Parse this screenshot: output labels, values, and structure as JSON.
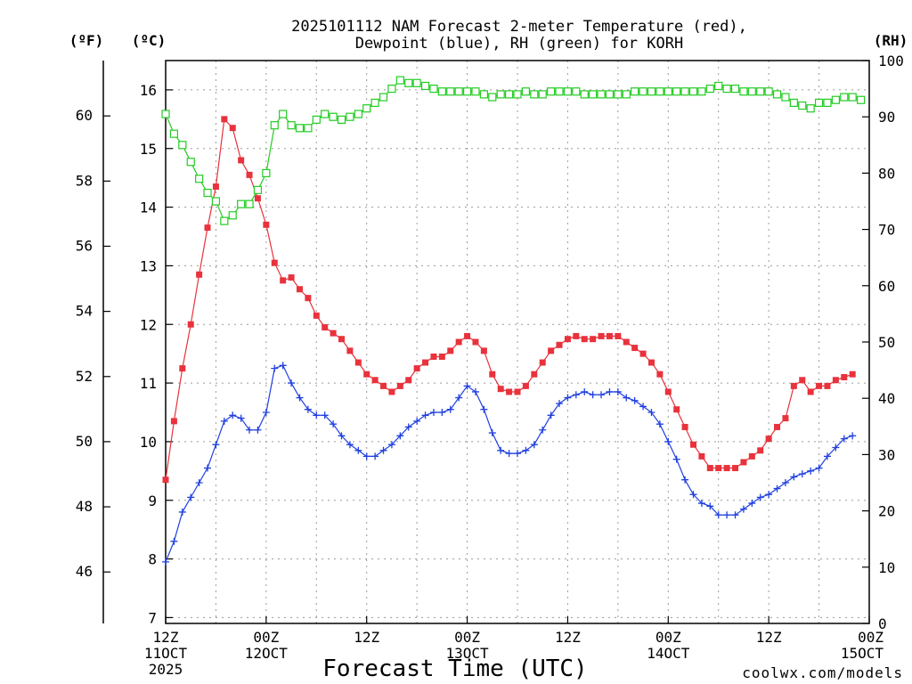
{
  "colors": {
    "temperature": "#e8323c",
    "dewpoint": "#2040e0",
    "rh": "#22cc22",
    "credit": "#e8323c"
  },
  "chart_data": {
    "type": "line",
    "title_lines": [
      "2025101112 NAM Forecast 2-meter Temperature (red),",
      "Dewpoint (blue), RH (green) for KORH"
    ],
    "xlabel": "Forecast Time (UTC)",
    "credit": "coolwx.com/models",
    "unit_labels": {
      "fahrenheit": "(ºF)",
      "celsius": "(ºC)",
      "rh": "(RH)"
    },
    "axes": {
      "x_hours_range": [
        0,
        84
      ],
      "celsius_range": [
        6.9,
        16.5
      ],
      "fahrenheit_ticks": [
        "46",
        "48",
        "50",
        "52",
        "54",
        "56",
        "58",
        "60"
      ],
      "celsius_ticks": [
        "7",
        "8",
        "9",
        "10",
        "11",
        "12",
        "13",
        "14",
        "15",
        "16"
      ],
      "rh_range": [
        0,
        100
      ],
      "rh_ticks": [
        "0",
        "10",
        "20",
        "30",
        "40",
        "50",
        "60",
        "70",
        "80",
        "90",
        "100"
      ],
      "grid": true
    },
    "x_ticks": [
      {
        "hour": 0,
        "lines": [
          "12Z",
          "11OCT",
          "2025"
        ]
      },
      {
        "hour": 12,
        "lines": [
          "00Z",
          "12OCT"
        ]
      },
      {
        "hour": 24,
        "lines": [
          "12Z"
        ]
      },
      {
        "hour": 36,
        "lines": [
          "00Z",
          "13OCT"
        ]
      },
      {
        "hour": 48,
        "lines": [
          "12Z"
        ]
      },
      {
        "hour": 60,
        "lines": [
          "00Z",
          "14OCT"
        ]
      },
      {
        "hour": 72,
        "lines": [
          "12Z"
        ]
      },
      {
        "hour": 84,
        "lines": [
          "00Z",
          "15OCT"
        ]
      }
    ],
    "series": [
      {
        "name": "Temperature (ºC)",
        "axis": "celsius",
        "marker": "filled-square",
        "points": [
          [
            0,
            9.35
          ],
          [
            1,
            10.35
          ],
          [
            2,
            11.25
          ],
          [
            3,
            12.0
          ],
          [
            4,
            12.85
          ],
          [
            5,
            13.65
          ],
          [
            6,
            14.35
          ],
          [
            7,
            15.5
          ],
          [
            8,
            15.35
          ],
          [
            9,
            14.8
          ],
          [
            10,
            14.55
          ],
          [
            11,
            14.15
          ],
          [
            12,
            13.7
          ],
          [
            13,
            13.05
          ],
          [
            14,
            12.75
          ],
          [
            15,
            12.8
          ],
          [
            16,
            12.6
          ],
          [
            17,
            12.45
          ],
          [
            18,
            12.15
          ],
          [
            19,
            11.95
          ],
          [
            20,
            11.85
          ],
          [
            21,
            11.75
          ],
          [
            22,
            11.55
          ],
          [
            23,
            11.35
          ],
          [
            24,
            11.15
          ],
          [
            25,
            11.05
          ],
          [
            26,
            10.95
          ],
          [
            27,
            10.85
          ],
          [
            28,
            10.95
          ],
          [
            29,
            11.05
          ],
          [
            30,
            11.25
          ],
          [
            31,
            11.35
          ],
          [
            32,
            11.45
          ],
          [
            33,
            11.45
          ],
          [
            34,
            11.55
          ],
          [
            35,
            11.7
          ],
          [
            36,
            11.8
          ],
          [
            37,
            11.7
          ],
          [
            38,
            11.55
          ],
          [
            39,
            11.15
          ],
          [
            40,
            10.9
          ],
          [
            41,
            10.85
          ],
          [
            42,
            10.85
          ],
          [
            43,
            10.95
          ],
          [
            44,
            11.15
          ],
          [
            45,
            11.35
          ],
          [
            46,
            11.55
          ],
          [
            47,
            11.65
          ],
          [
            48,
            11.75
          ],
          [
            49,
            11.8
          ],
          [
            50,
            11.75
          ],
          [
            51,
            11.75
          ],
          [
            52,
            11.8
          ],
          [
            53,
            11.8
          ],
          [
            54,
            11.8
          ],
          [
            55,
            11.7
          ],
          [
            56,
            11.6
          ],
          [
            57,
            11.5
          ],
          [
            58,
            11.35
          ],
          [
            59,
            11.15
          ],
          [
            60,
            10.85
          ],
          [
            61,
            10.55
          ],
          [
            62,
            10.25
          ],
          [
            63,
            9.95
          ],
          [
            64,
            9.75
          ],
          [
            65,
            9.55
          ],
          [
            66,
            9.55
          ],
          [
            67,
            9.55
          ],
          [
            68,
            9.55
          ],
          [
            69,
            9.65
          ],
          [
            70,
            9.75
          ],
          [
            71,
            9.85
          ],
          [
            72,
            10.05
          ],
          [
            73,
            10.25
          ],
          [
            74,
            10.4
          ],
          [
            75,
            10.95
          ],
          [
            76,
            11.05
          ],
          [
            77,
            10.85
          ],
          [
            78,
            10.95
          ],
          [
            79,
            10.95
          ],
          [
            80,
            11.05
          ],
          [
            81,
            11.1
          ],
          [
            82,
            11.15
          ]
        ]
      },
      {
        "name": "Dewpoint (ºC)",
        "axis": "celsius",
        "marker": "plus",
        "points": [
          [
            0,
            7.95
          ],
          [
            1,
            8.3
          ],
          [
            2,
            8.8
          ],
          [
            3,
            9.05
          ],
          [
            4,
            9.3
          ],
          [
            5,
            9.55
          ],
          [
            6,
            9.95
          ],
          [
            7,
            10.35
          ],
          [
            8,
            10.45
          ],
          [
            9,
            10.4
          ],
          [
            10,
            10.2
          ],
          [
            11,
            10.2
          ],
          [
            12,
            10.5
          ],
          [
            13,
            11.25
          ],
          [
            14,
            11.3
          ],
          [
            15,
            11.0
          ],
          [
            16,
            10.75
          ],
          [
            17,
            10.55
          ],
          [
            18,
            10.45
          ],
          [
            19,
            10.45
          ],
          [
            20,
            10.3
          ],
          [
            21,
            10.1
          ],
          [
            22,
            9.95
          ],
          [
            23,
            9.85
          ],
          [
            24,
            9.75
          ],
          [
            25,
            9.75
          ],
          [
            26,
            9.85
          ],
          [
            27,
            9.95
          ],
          [
            28,
            10.1
          ],
          [
            29,
            10.25
          ],
          [
            30,
            10.35
          ],
          [
            31,
            10.45
          ],
          [
            32,
            10.5
          ],
          [
            33,
            10.5
          ],
          [
            34,
            10.55
          ],
          [
            35,
            10.75
          ],
          [
            36,
            10.95
          ],
          [
            37,
            10.85
          ],
          [
            38,
            10.55
          ],
          [
            39,
            10.15
          ],
          [
            40,
            9.85
          ],
          [
            41,
            9.8
          ],
          [
            42,
            9.8
          ],
          [
            43,
            9.85
          ],
          [
            44,
            9.95
          ],
          [
            45,
            10.2
          ],
          [
            46,
            10.45
          ],
          [
            47,
            10.65
          ],
          [
            48,
            10.75
          ],
          [
            49,
            10.8
          ],
          [
            50,
            10.85
          ],
          [
            51,
            10.8
          ],
          [
            52,
            10.8
          ],
          [
            53,
            10.85
          ],
          [
            54,
            10.85
          ],
          [
            55,
            10.75
          ],
          [
            56,
            10.7
          ],
          [
            57,
            10.6
          ],
          [
            58,
            10.5
          ],
          [
            59,
            10.3
          ],
          [
            60,
            10.0
          ],
          [
            61,
            9.7
          ],
          [
            62,
            9.35
          ],
          [
            63,
            9.1
          ],
          [
            64,
            8.95
          ],
          [
            65,
            8.9
          ],
          [
            66,
            8.75
          ],
          [
            67,
            8.75
          ],
          [
            68,
            8.75
          ],
          [
            69,
            8.85
          ],
          [
            70,
            8.95
          ],
          [
            71,
            9.05
          ],
          [
            72,
            9.1
          ],
          [
            73,
            9.2
          ],
          [
            74,
            9.3
          ],
          [
            75,
            9.4
          ],
          [
            76,
            9.45
          ],
          [
            77,
            9.5
          ],
          [
            78,
            9.55
          ],
          [
            79,
            9.75
          ],
          [
            80,
            9.9
          ],
          [
            81,
            10.05
          ],
          [
            82,
            10.1
          ]
        ]
      },
      {
        "name": "RH (%)",
        "axis": "rh",
        "marker": "open-square",
        "points": [
          [
            0,
            90.5
          ],
          [
            1,
            87.0
          ],
          [
            2,
            85.0
          ],
          [
            3,
            82.0
          ],
          [
            4,
            79.0
          ],
          [
            5,
            76.5
          ],
          [
            6,
            75.0
          ],
          [
            7,
            71.5
          ],
          [
            8,
            72.5
          ],
          [
            9,
            74.5
          ],
          [
            10,
            74.5
          ],
          [
            11,
            77.0
          ],
          [
            12,
            80.0
          ],
          [
            13,
            88.5
          ],
          [
            14,
            90.5
          ],
          [
            15,
            88.5
          ],
          [
            16,
            88.0
          ],
          [
            17,
            88.0
          ],
          [
            18,
            89.5
          ],
          [
            19,
            90.5
          ],
          [
            20,
            90.0
          ],
          [
            21,
            89.5
          ],
          [
            22,
            90.0
          ],
          [
            23,
            90.5
          ],
          [
            24,
            91.5
          ],
          [
            25,
            92.5
          ],
          [
            26,
            93.5
          ],
          [
            27,
            95.0
          ],
          [
            28,
            96.5
          ],
          [
            29,
            96.0
          ],
          [
            30,
            96.0
          ],
          [
            31,
            95.5
          ],
          [
            32,
            95.0
          ],
          [
            33,
            94.5
          ],
          [
            34,
            94.5
          ],
          [
            35,
            94.5
          ],
          [
            36,
            94.5
          ],
          [
            37,
            94.5
          ],
          [
            38,
            94.0
          ],
          [
            39,
            93.5
          ],
          [
            40,
            94.0
          ],
          [
            41,
            94.0
          ],
          [
            42,
            94.0
          ],
          [
            43,
            94.5
          ],
          [
            44,
            94.0
          ],
          [
            45,
            94.0
          ],
          [
            46,
            94.5
          ],
          [
            47,
            94.5
          ],
          [
            48,
            94.5
          ],
          [
            49,
            94.5
          ],
          [
            50,
            94.0
          ],
          [
            51,
            94.0
          ],
          [
            52,
            94.0
          ],
          [
            53,
            94.0
          ],
          [
            54,
            94.0
          ],
          [
            55,
            94.0
          ],
          [
            56,
            94.5
          ],
          [
            57,
            94.5
          ],
          [
            58,
            94.5
          ],
          [
            59,
            94.5
          ],
          [
            60,
            94.5
          ],
          [
            61,
            94.5
          ],
          [
            62,
            94.5
          ],
          [
            63,
            94.5
          ],
          [
            64,
            94.5
          ],
          [
            65,
            95.0
          ],
          [
            66,
            95.5
          ],
          [
            67,
            95.0
          ],
          [
            68,
            95.0
          ],
          [
            69,
            94.5
          ],
          [
            70,
            94.5
          ],
          [
            71,
            94.5
          ],
          [
            72,
            94.5
          ],
          [
            73,
            94.0
          ],
          [
            74,
            93.5
          ],
          [
            75,
            92.5
          ],
          [
            76,
            92.0
          ],
          [
            77,
            91.5
          ],
          [
            78,
            92.5
          ],
          [
            79,
            92.5
          ],
          [
            80,
            93.0
          ],
          [
            81,
            93.5
          ],
          [
            82,
            93.5
          ],
          [
            83,
            93.0
          ]
        ]
      }
    ]
  }
}
